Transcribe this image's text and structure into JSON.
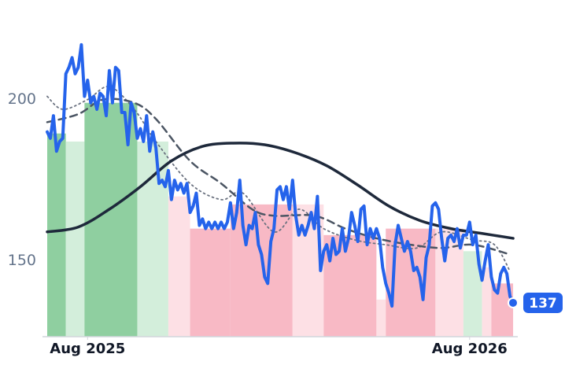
{
  "chart_data": {
    "type": "line",
    "x": [
      0,
      1,
      2,
      3,
      4,
      5,
      6,
      7,
      8,
      9,
      10,
      11,
      12,
      13,
      14,
      15,
      16,
      17,
      18,
      19,
      20,
      21,
      22,
      23,
      24,
      25,
      26,
      27,
      28,
      29,
      30,
      31,
      32,
      33,
      34,
      35,
      36,
      37,
      38,
      39,
      40,
      41,
      42,
      43,
      44,
      45,
      46,
      47,
      48,
      49,
      50,
      51,
      52,
      53,
      54,
      55,
      56,
      57,
      58,
      59,
      60,
      61,
      62,
      63,
      64,
      65,
      66,
      67,
      68,
      69,
      70,
      71,
      72,
      73,
      74,
      75,
      76,
      77,
      78,
      79,
      80,
      81,
      82,
      83,
      84,
      85,
      86,
      87,
      88,
      89,
      90,
      91,
      92,
      93,
      94,
      95,
      96,
      97,
      98,
      99,
      100,
      101,
      102,
      103,
      104,
      105,
      106,
      107,
      108,
      109,
      110,
      111,
      112,
      113,
      114,
      115,
      116,
      117,
      118,
      119,
      120,
      121,
      122,
      123,
      124,
      125,
      126,
      127,
      128,
      129,
      130,
      131,
      132,
      133,
      134,
      135,
      136,
      137,
      138,
      139,
      140,
      141,
      142,
      143,
      144,
      145,
      146,
      147,
      148,
      149,
      150
    ],
    "xlim": [
      0,
      151
    ],
    "ylim": [
      126.5,
      226
    ],
    "yticks": [
      150,
      200
    ],
    "xticks": [
      {
        "value": 13,
        "label": "Aug 2025"
      },
      {
        "value": 136,
        "label": "Aug 2026"
      }
    ],
    "grid": false,
    "bands": [
      {
        "x": [
          0,
          6
        ],
        "value": 189.5,
        "color": "#8fcfa0"
      },
      {
        "x": [
          6,
          12
        ],
        "value": 187,
        "color": "#d3eedb"
      },
      {
        "x": [
          12,
          29
        ],
        "value": 199,
        "color": "#8fcfa0"
      },
      {
        "x": [
          29,
          39
        ],
        "value": 187,
        "color": "#d3eedb"
      },
      {
        "x": [
          39,
          46
        ],
        "value": 170,
        "color": "#fde0e5"
      },
      {
        "x": [
          46,
          59
        ],
        "value": 160,
        "color": "#f8b9c5"
      },
      {
        "x": [
          59,
          79
        ],
        "value": 167.5,
        "color": "#f8b9c5"
      },
      {
        "x": [
          79,
          89
        ],
        "value": 167.5,
        "color": "#fde0e5"
      },
      {
        "x": [
          89,
          106
        ],
        "value": 158,
        "color": "#f8b9c5"
      },
      {
        "x": [
          106,
          109
        ],
        "value": 138,
        "color": "#fde0e5"
      },
      {
        "x": [
          109,
          125
        ],
        "value": 160,
        "color": "#f8b9c5"
      },
      {
        "x": [
          125,
          134
        ],
        "value": 160,
        "color": "#fde0e5"
      },
      {
        "x": [
          134,
          140
        ],
        "value": 153,
        "color": "#d3eedb"
      },
      {
        "x": [
          140,
          143
        ],
        "value": 148,
        "color": "#fde0e5"
      },
      {
        "x": [
          143,
          150
        ],
        "value": 143,
        "color": "#f8b9c5"
      }
    ],
    "series": [
      {
        "color": "#2563eb",
        "style": "solid",
        "width": 4,
        "label_last": true,
        "values": [
          190,
          188,
          195,
          184,
          187,
          188,
          208,
          210,
          213,
          208,
          210,
          217,
          201,
          206,
          199,
          201,
          197,
          202,
          201,
          195,
          209,
          199,
          210,
          209,
          196,
          196,
          186,
          199,
          196,
          188,
          191,
          187,
          195,
          184,
          190,
          185,
          174,
          175,
          173,
          178,
          169,
          175,
          172,
          174,
          171,
          174,
          165,
          167,
          171,
          161,
          163,
          160,
          162,
          160,
          162,
          160,
          162,
          160,
          162,
          168,
          160,
          165,
          175,
          161,
          155,
          161,
          160,
          165,
          155,
          152,
          145,
          143,
          156,
          160,
          172,
          173,
          169,
          173,
          166,
          175,
          164,
          158,
          161,
          158,
          161,
          165,
          160,
          170,
          147,
          153,
          155,
          150,
          157,
          152,
          153,
          160,
          153,
          157,
          165,
          161,
          156,
          166,
          167,
          155,
          160,
          157,
          160,
          157,
          148,
          143,
          140,
          136,
          155,
          161,
          157,
          153,
          156,
          153,
          147,
          148,
          145,
          138,
          151,
          155,
          167,
          168,
          166,
          157,
          150,
          157,
          158,
          156,
          160,
          154,
          158,
          158,
          162,
          155,
          158,
          149,
          144,
          150,
          155,
          145,
          141,
          140,
          146,
          148,
          146,
          139,
          137
        ]
      },
      {
        "color": "#1e293b",
        "style": "solid",
        "width": 3.5,
        "x": [
          0,
          10,
          20,
          30,
          40,
          50,
          60,
          70,
          80,
          90,
          100,
          110,
          120,
          130,
          140,
          150
        ],
        "values": [
          159,
          160.5,
          166,
          173,
          181,
          185.5,
          186.5,
          186,
          183.5,
          179.5,
          173.5,
          167,
          162.5,
          160,
          158.5,
          157
        ]
      },
      {
        "color": "#4b5563",
        "style": "dashed",
        "width": 2.5,
        "x": [
          0,
          10,
          18,
          28,
          35,
          46,
          56,
          66,
          73,
          86,
          96,
          106,
          117,
          127,
          137,
          149
        ],
        "values": [
          193,
          195.5,
          200,
          199,
          194,
          181,
          174,
          166,
          164,
          164,
          160,
          157,
          155,
          154,
          155,
          152
        ]
      },
      {
        "color": "#6b7280",
        "style": "dotted",
        "width": 1.8,
        "x": [
          0,
          5,
          13,
          20,
          28,
          35,
          46,
          56,
          63,
          73,
          81,
          89,
          99,
          109,
          119,
          127,
          137,
          144,
          149
        ],
        "values": [
          201,
          197,
          200,
          204,
          197,
          187,
          174,
          169,
          171,
          159,
          166,
          160,
          156.5,
          155,
          154,
          159,
          156.5,
          155,
          146.8
        ]
      }
    ]
  }
}
